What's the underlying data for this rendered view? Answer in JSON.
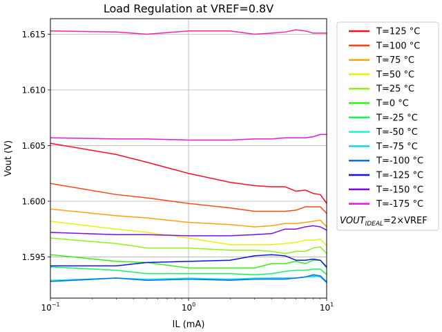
{
  "chart_data": {
    "type": "line",
    "title": "Load Regulation at VREF=0.8V",
    "xlabel": "IL (mA)",
    "ylabel": "Vout (V)",
    "xscale": "log",
    "xlim": [
      0.1,
      10
    ],
    "ylim": [
      1.5913,
      1.6164
    ],
    "grid": true,
    "legend_position": "outside-right",
    "x_ticks": [
      {
        "value": 0.1,
        "base": "10",
        "exp": "−1"
      },
      {
        "value": 1,
        "base": "10",
        "exp": "0"
      },
      {
        "value": 10,
        "base": "10",
        "exp": "1"
      }
    ],
    "y_ticks": [
      1.595,
      1.6,
      1.605,
      1.61,
      1.615
    ],
    "y_tick_labels": [
      "1.595",
      "1.600",
      "1.605",
      "1.610",
      "1.615"
    ],
    "legend_note": {
      "prefix": "VOUT",
      "sub": "IDEAL",
      "suffix": "=2×VREF"
    },
    "series": [
      {
        "name": "T=125 °C",
        "color": "#ff0b26",
        "x": [
          0.1,
          0.3,
          0.5,
          1,
          2,
          3,
          4,
          5,
          6,
          7,
          8,
          9,
          10
        ],
        "y": [
          1.6052,
          1.6042,
          1.6035,
          1.6025,
          1.6017,
          1.6014,
          1.6013,
          1.6013,
          1.6009,
          1.601,
          1.6007,
          1.6006,
          1.5998
        ]
      },
      {
        "name": "T=100 °C",
        "color": "#ff4411",
        "x": [
          0.1,
          0.3,
          0.5,
          1,
          2,
          3,
          4,
          5,
          6,
          7,
          8,
          9,
          10
        ],
        "y": [
          1.6016,
          1.6006,
          1.6003,
          1.5998,
          1.5994,
          1.5991,
          1.5991,
          1.5991,
          1.5992,
          1.5995,
          1.5995,
          1.5995,
          1.5989
        ]
      },
      {
        "name": "T=75 °C",
        "color": "#ffa008",
        "x": [
          0.1,
          0.3,
          0.5,
          1,
          2,
          3,
          4,
          5,
          6,
          7,
          8,
          9,
          10
        ],
        "y": [
          1.5993,
          1.5987,
          1.5985,
          1.5981,
          1.5979,
          1.5977,
          1.5978,
          1.598,
          1.598,
          1.5981,
          1.5982,
          1.5983,
          1.5977
        ]
      },
      {
        "name": "T=50 °C",
        "color": "#eaf00a",
        "x": [
          0.1,
          0.3,
          0.5,
          1,
          2,
          3,
          4,
          5,
          6,
          7,
          8,
          9,
          10
        ],
        "y": [
          1.5982,
          1.5975,
          1.5972,
          1.5967,
          1.5961,
          1.5961,
          1.5961,
          1.5962,
          1.5963,
          1.5965,
          1.5965,
          1.5966,
          1.596
        ]
      },
      {
        "name": "T=25 °C",
        "color": "#8df210",
        "x": [
          0.1,
          0.3,
          0.5,
          1,
          2,
          3,
          4,
          5,
          6,
          7,
          8,
          9,
          10
        ],
        "y": [
          1.5967,
          1.5962,
          1.5958,
          1.5958,
          1.5956,
          1.5956,
          1.5955,
          1.5953,
          1.5955,
          1.5955,
          1.5958,
          1.5959,
          1.5953
        ]
      },
      {
        "name": "T=0 °C",
        "color": "#2ff20c",
        "x": [
          0.1,
          0.3,
          0.5,
          1,
          2,
          3,
          4,
          5,
          6,
          7,
          8,
          9,
          10
        ],
        "y": [
          1.5952,
          1.5946,
          1.5945,
          1.594,
          1.594,
          1.594,
          1.5944,
          1.5944,
          1.5946,
          1.5944,
          1.5947,
          1.5947,
          1.594
        ]
      },
      {
        "name": "T=-25 °C",
        "color": "#14f460",
        "x": [
          0.1,
          0.3,
          0.5,
          1,
          2,
          3,
          4,
          5,
          6,
          7,
          8,
          9,
          10
        ],
        "y": [
          1.5941,
          1.5938,
          1.5935,
          1.5935,
          1.5935,
          1.5934,
          1.5935,
          1.5937,
          1.5938,
          1.5938,
          1.5939,
          1.5939,
          1.5934
        ]
      },
      {
        "name": "T=-50 °C",
        "color": "#17f4c8",
        "x": [
          0.1,
          0.3,
          0.5,
          1,
          2,
          3,
          4,
          5,
          6,
          7,
          8,
          9,
          10
        ],
        "y": [
          1.5929,
          1.5931,
          1.593,
          1.5931,
          1.593,
          1.5931,
          1.5931,
          1.5931,
          1.5931,
          1.5932,
          1.5932,
          1.5933,
          1.5928
        ]
      },
      {
        "name": "T=-75 °C",
        "color": "#12d0f0",
        "x": [
          0.1,
          0.3,
          0.5,
          1,
          2,
          3,
          4,
          5,
          6,
          7,
          8,
          9,
          10
        ],
        "y": [
          1.5928,
          1.5931,
          1.5929,
          1.593,
          1.593,
          1.593,
          1.5931,
          1.5931,
          1.5931,
          1.5932,
          1.5933,
          1.5932,
          1.5927
        ]
      },
      {
        "name": "T=-100 °C",
        "color": "#0a6cf0",
        "x": [
          0.1,
          0.3,
          0.5,
          1,
          2,
          3,
          4,
          5,
          6,
          7,
          8,
          9,
          10
        ],
        "y": [
          1.5928,
          1.5931,
          1.5929,
          1.593,
          1.5929,
          1.593,
          1.593,
          1.593,
          1.5931,
          1.5932,
          1.5934,
          1.5933,
          1.5927
        ]
      },
      {
        "name": "T=-125 °C",
        "color": "#0c0ff0",
        "x": [
          0.1,
          0.3,
          0.5,
          1,
          2,
          3,
          4,
          5,
          6,
          7,
          8,
          9,
          10
        ],
        "y": [
          1.5942,
          1.5942,
          1.5945,
          1.5946,
          1.5947,
          1.5951,
          1.5952,
          1.5951,
          1.5947,
          1.5947,
          1.5948,
          1.5947,
          1.5941
        ]
      },
      {
        "name": "T=-150 °C",
        "color": "#7a0cf2",
        "x": [
          0.1,
          0.3,
          0.5,
          1,
          2,
          3,
          4,
          5,
          6,
          7,
          8,
          9,
          10
        ],
        "y": [
          1.5972,
          1.597,
          1.597,
          1.5969,
          1.5969,
          1.597,
          1.5971,
          1.5975,
          1.5975,
          1.5977,
          1.5978,
          1.5977,
          1.5974
        ]
      },
      {
        "name": "T=-175 °C",
        "color": "#ee12e5",
        "x": [
          0.1,
          0.3,
          0.5,
          1,
          2,
          3,
          4,
          5,
          6,
          7,
          8,
          9,
          10
        ],
        "y": [
          1.6057,
          1.6056,
          1.6056,
          1.6055,
          1.6055,
          1.6056,
          1.6056,
          1.6057,
          1.6057,
          1.6057,
          1.6058,
          1.606,
          1.606
        ]
      },
      {
        "name": "",
        "color": "#ff1ea8",
        "x": [
          0.1,
          0.3,
          0.5,
          1,
          2,
          3,
          4,
          5,
          6,
          7,
          8,
          9,
          10
        ],
        "y": [
          1.6153,
          1.6152,
          1.615,
          1.6153,
          1.6153,
          1.615,
          1.6151,
          1.6152,
          1.6154,
          1.6153,
          1.6151,
          1.6151,
          1.6151
        ]
      }
    ]
  }
}
